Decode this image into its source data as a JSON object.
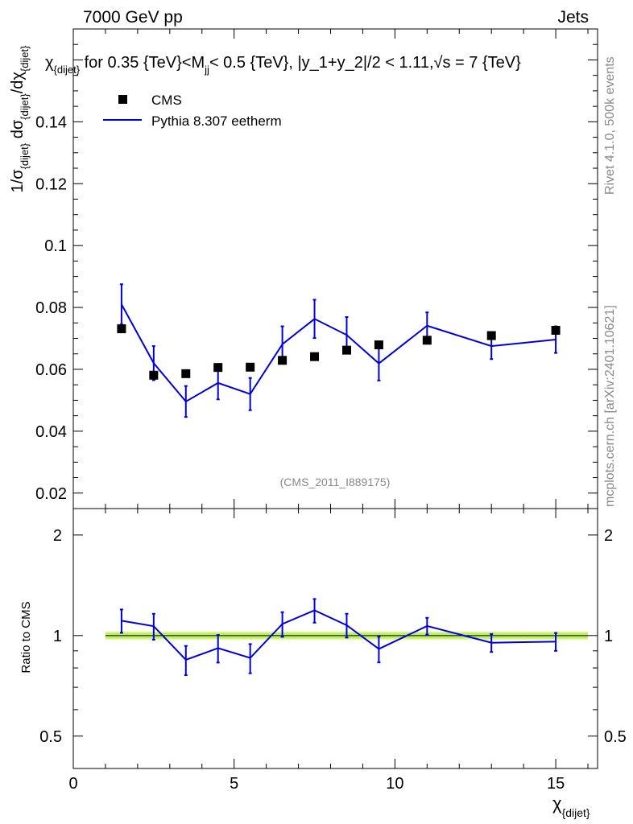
{
  "header": {
    "left": "7000 GeV pp",
    "right": "Jets"
  },
  "side_labels": {
    "rivet": "Rivet 4.1.0,  500k events",
    "mcplots": "mcplots.cern.ch [arXiv:2401.10621]"
  },
  "watermark": "(CMS_2011_I889175)",
  "chart_data": {
    "type": "line",
    "title": "χ_{dijet} for 0.35 {TeV}<M_jj< 0.5 {TeV}, |y_1+y_2|/2 < 1.11, √s = 7 {TeV}",
    "title_parts": {
      "chi": "χ",
      "sub_dijet": "{dijet}",
      "mid": " for 0.35 {TeV}<M",
      "sub_jj": "jj",
      "tail": "< 0.5 {TeV}, |y_1+y_2|/2 < 1.11,",
      "sqrt": "√s = 7 {TeV}"
    },
    "ylabel_parts": {
      "p1": "1/σ",
      "s1": "{dijet}",
      "p2": " dσ",
      "s2": "{dijet}",
      "p3": "/dχ",
      "s3": "{dijet}"
    },
    "xlabel_parts": {
      "chi": "χ",
      "sub": "{dijet}"
    },
    "ratio_ylabel": "Ratio to CMS",
    "xlim": [
      0,
      16.3
    ],
    "ylim": [
      0.015,
      0.17
    ],
    "ratio_ylim": [
      0.4,
      2.4
    ],
    "x_ticks": [
      0,
      5,
      10,
      15
    ],
    "x_tick_labels": [
      "0",
      "5",
      "10",
      "15"
    ],
    "y_ticks": [
      0.02,
      0.04,
      0.06,
      0.08,
      0.1,
      0.12,
      0.14
    ],
    "y_tick_labels": [
      "0.02",
      "0.04",
      "0.06",
      "0.08",
      "0.1",
      "0.12",
      "0.14"
    ],
    "ratio_ticks": [
      0.5,
      1,
      2
    ],
    "ratio_tick_labels": [
      "0.5",
      "1",
      "2"
    ],
    "legend": [
      {
        "name": "CMS",
        "marker": "square",
        "color": "#000000"
      },
      {
        "name": "Pythia 8.307 eetherm",
        "marker": "line",
        "color": "#0000dd"
      }
    ],
    "bin_edges": [
      1,
      2,
      3,
      4,
      5,
      6,
      7,
      8,
      9,
      10,
      12,
      14,
      16
    ],
    "x": [
      1.5,
      2.5,
      3.5,
      4.5,
      5.5,
      6.5,
      7.5,
      8.5,
      9.5,
      11,
      13,
      15
    ],
    "series": [
      {
        "name": "CMS",
        "values": [
          0.0731,
          0.0581,
          0.0586,
          0.0606,
          0.0607,
          0.0629,
          0.0641,
          0.0662,
          0.0679,
          0.0694,
          0.0709,
          0.0726
        ]
      },
      {
        "name": "Pythia 8.307 eetherm",
        "values": [
          0.081,
          0.062,
          0.0496,
          0.0556,
          0.052,
          0.0681,
          0.0763,
          0.0711,
          0.0619,
          0.0741,
          0.0675,
          0.0696
        ],
        "errors": [
          0.0065,
          0.0055,
          0.005,
          0.0053,
          0.0052,
          0.0058,
          0.0062,
          0.0058,
          0.0055,
          0.0043,
          0.0042,
          0.0043
        ]
      }
    ],
    "ratio": {
      "values": [
        1.108,
        1.067,
        0.846,
        0.917,
        0.857,
        1.083,
        1.19,
        1.074,
        0.912,
        1.068,
        0.952,
        0.959
      ],
      "errors": [
        0.089,
        0.095,
        0.085,
        0.087,
        0.086,
        0.092,
        0.097,
        0.088,
        0.081,
        0.062,
        0.059,
        0.059
      ],
      "band_inner": 0.02,
      "band_outer": 0.03
    }
  }
}
